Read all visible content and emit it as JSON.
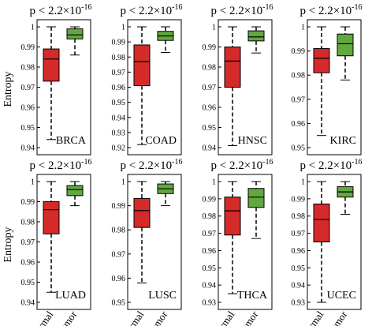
{
  "figure": {
    "ylabel": "Entropy",
    "pvalue": "p < 2.2×10",
    "pvalue_exp": "-16"
  },
  "colors": {
    "normal": "#d42a2a",
    "tumor": "#62a83e"
  },
  "chart_data": [
    {
      "type": "box",
      "panel": "BRCA",
      "categories": [
        "Normal",
        "Tumor"
      ],
      "ylim": [
        0.94,
        1.0
      ],
      "yticks": [
        0.94,
        0.95,
        0.96,
        0.97,
        0.98,
        0.99,
        1
      ],
      "boxes": [
        {
          "min": 0.944,
          "q1": 0.973,
          "median": 0.984,
          "q3": 0.989,
          "max": 1.0
        },
        {
          "min": 0.986,
          "q1": 0.994,
          "median": 0.996,
          "q3": 0.999,
          "max": 1.0
        }
      ]
    },
    {
      "type": "box",
      "panel": "COAD",
      "categories": [
        "Normal",
        "Tumor"
      ],
      "ylim": [
        0.92,
        1.0
      ],
      "yticks": [
        0.92,
        0.93,
        0.94,
        0.95,
        0.96,
        0.97,
        0.98,
        0.99,
        1
      ],
      "boxes": [
        {
          "min": 0.922,
          "q1": 0.961,
          "median": 0.977,
          "q3": 0.988,
          "max": 1.0
        },
        {
          "min": 0.983,
          "q1": 0.991,
          "median": 0.994,
          "q3": 0.997,
          "max": 1.0
        }
      ]
    },
    {
      "type": "box",
      "panel": "HNSC",
      "categories": [
        "Normal",
        "Tumor"
      ],
      "ylim": [
        0.94,
        1.0
      ],
      "yticks": [
        0.94,
        0.95,
        0.96,
        0.97,
        0.98,
        0.99,
        1
      ],
      "boxes": [
        {
          "min": 0.941,
          "q1": 0.97,
          "median": 0.983,
          "q3": 0.99,
          "max": 1.0
        },
        {
          "min": 0.987,
          "q1": 0.993,
          "median": 0.995,
          "q3": 0.998,
          "max": 1.0
        }
      ]
    },
    {
      "type": "box",
      "panel": "KIRC",
      "categories": [
        "Normal",
        "Tumor"
      ],
      "ylim": [
        0.95,
        1.0
      ],
      "yticks": [
        0.95,
        0.96,
        0.97,
        0.98,
        0.99,
        1
      ],
      "boxes": [
        {
          "min": 0.955,
          "q1": 0.981,
          "median": 0.987,
          "q3": 0.991,
          "max": 1.0
        },
        {
          "min": 0.978,
          "q1": 0.988,
          "median": 0.993,
          "q3": 0.997,
          "max": 1.0
        }
      ]
    },
    {
      "type": "box",
      "panel": "LUAD",
      "categories": [
        "Normal",
        "Tumor"
      ],
      "ylim": [
        0.94,
        1.0
      ],
      "yticks": [
        0.94,
        0.95,
        0.96,
        0.97,
        0.98,
        0.99,
        1
      ],
      "boxes": [
        {
          "min": 0.945,
          "q1": 0.974,
          "median": 0.986,
          "q3": 0.99,
          "max": 1.0
        },
        {
          "min": 0.988,
          "q1": 0.993,
          "median": 0.996,
          "q3": 0.998,
          "max": 1.0
        }
      ]
    },
    {
      "type": "box",
      "panel": "LUSC",
      "categories": [
        "Normal",
        "Tumor"
      ],
      "ylim": [
        0.95,
        1.0
      ],
      "yticks": [
        0.95,
        0.96,
        0.97,
        0.98,
        0.99,
        1
      ],
      "boxes": [
        {
          "min": 0.958,
          "q1": 0.981,
          "median": 0.988,
          "q3": 0.993,
          "max": 1.0
        },
        {
          "min": 0.99,
          "q1": 0.995,
          "median": 0.997,
          "q3": 0.999,
          "max": 1.0
        }
      ]
    },
    {
      "type": "box",
      "panel": "THCA",
      "categories": [
        "Normal",
        "Tumor"
      ],
      "ylim": [
        0.93,
        1.0
      ],
      "yticks": [
        0.93,
        0.94,
        0.95,
        0.96,
        0.97,
        0.98,
        0.99,
        1
      ],
      "boxes": [
        {
          "min": 0.935,
          "q1": 0.969,
          "median": 0.983,
          "q3": 0.991,
          "max": 1.0
        },
        {
          "min": 0.967,
          "q1": 0.985,
          "median": 0.991,
          "q3": 0.996,
          "max": 1.0
        }
      ]
    },
    {
      "type": "box",
      "panel": "UCEC",
      "categories": [
        "Normal",
        "Tumor"
      ],
      "ylim": [
        0.93,
        1.0
      ],
      "yticks": [
        0.93,
        0.94,
        0.95,
        0.96,
        0.97,
        0.98,
        0.99,
        1
      ],
      "boxes": [
        {
          "min": 0.93,
          "q1": 0.965,
          "median": 0.978,
          "q3": 0.987,
          "max": 1.0
        },
        {
          "min": 0.981,
          "q1": 0.991,
          "median": 0.994,
          "q3": 0.997,
          "max": 1.0
        }
      ]
    }
  ]
}
